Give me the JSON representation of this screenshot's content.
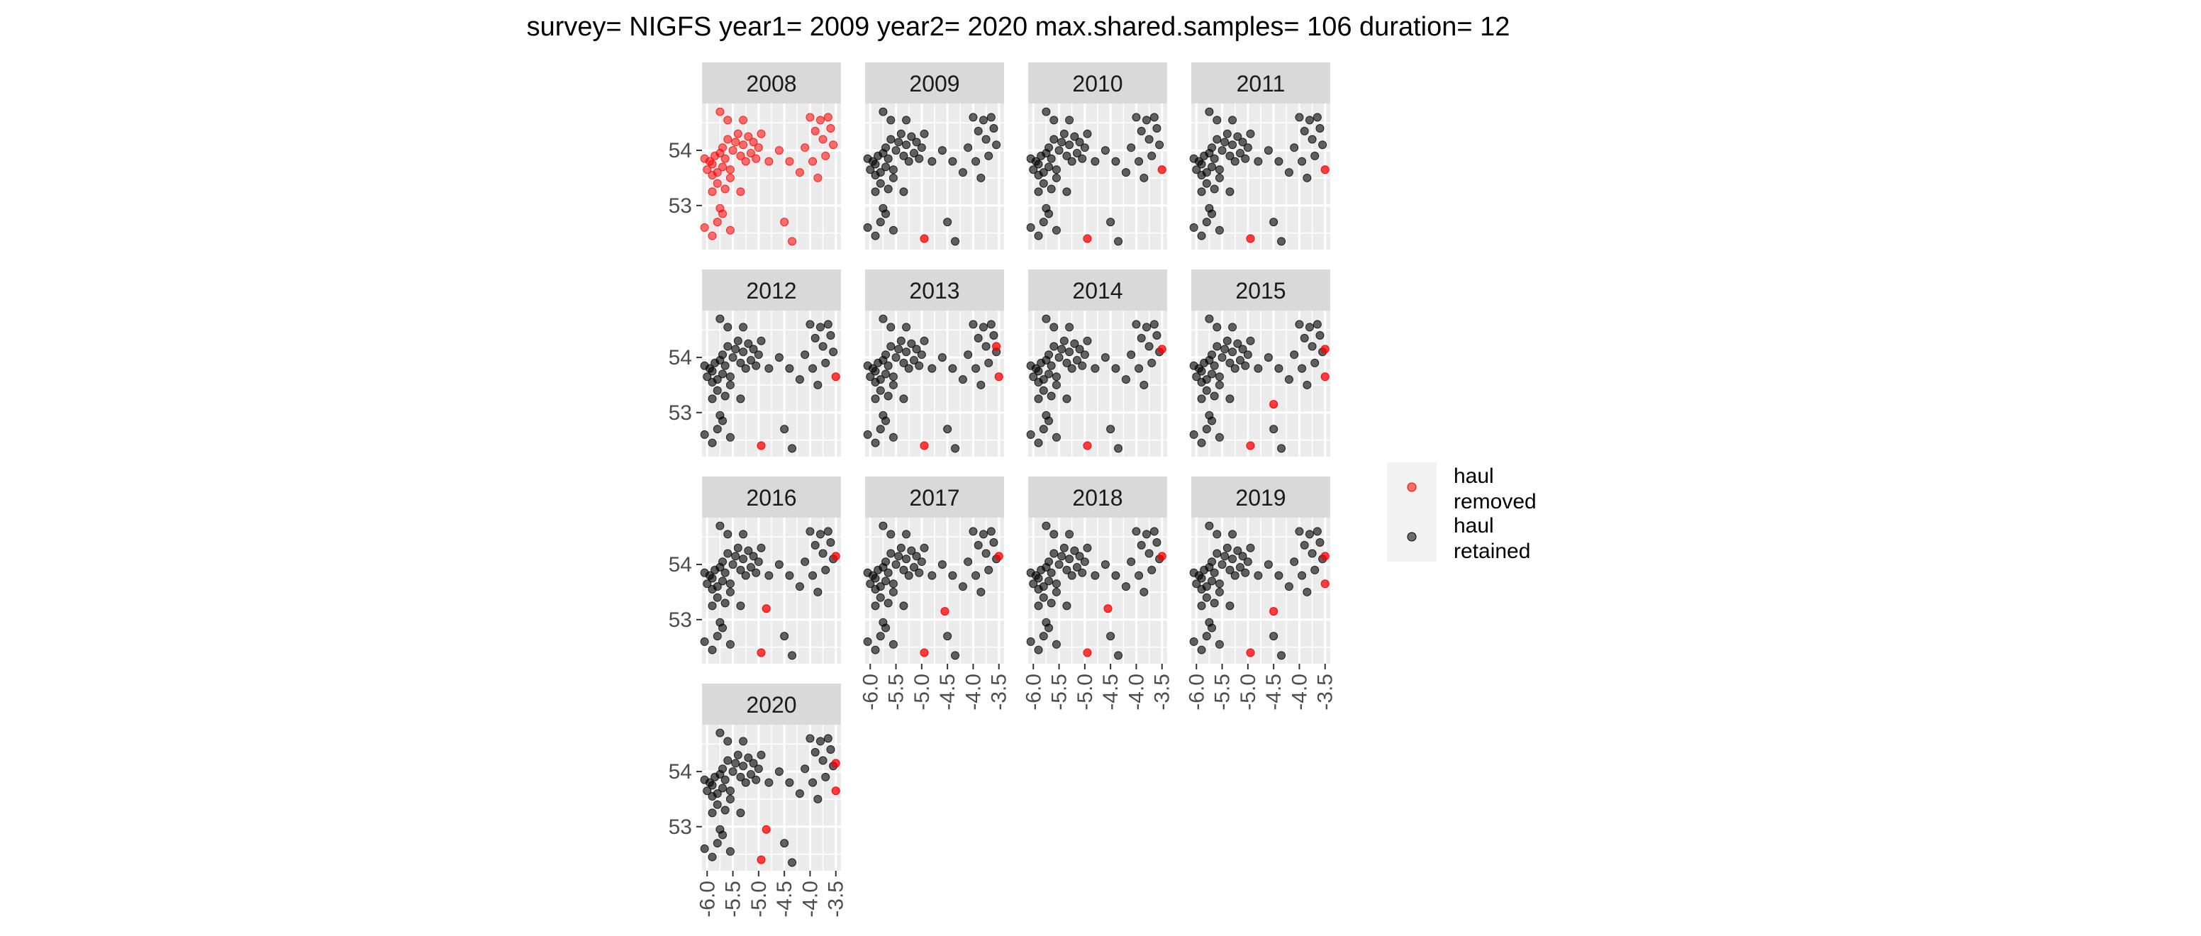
{
  "title": "survey= NIGFS year1= 2009 year2= 2020 max.shared.samples= 106 duration= 12",
  "colors": {
    "removed": "#ff0000",
    "retained": "#000000",
    "panel_background": "#ebebeb",
    "grid": "#ffffff",
    "strip_background": "#d9d9d9"
  },
  "chart_data": {
    "type": "scatter",
    "facet_by": "year",
    "x_ticks": [
      "-6.0",
      "-5.5",
      "-5.0",
      "-4.5",
      "-4.0",
      "-3.5"
    ],
    "y_ticks": [
      "53",
      "54"
    ],
    "xlim": [
      -6.1,
      -3.4
    ],
    "ylim": [
      52.2,
      54.85
    ],
    "grid": true,
    "legend_position": "right",
    "legend": [
      {
        "key": "removed",
        "label_lines": [
          "haul",
          "removed"
        ]
      },
      {
        "key": "retained",
        "label_lines": [
          "haul",
          "retained"
        ]
      }
    ],
    "base_hauls": [
      [
        -6.05,
        53.85
      ],
      [
        -6.0,
        53.65
      ],
      [
        -5.95,
        53.8
      ],
      [
        -5.9,
        53.55
      ],
      [
        -5.9,
        53.75
      ],
      [
        -5.85,
        53.9
      ],
      [
        -5.8,
        53.6
      ],
      [
        -5.8,
        53.4
      ],
      [
        -5.75,
        53.95
      ],
      [
        -5.7,
        53.7
      ],
      [
        -5.7,
        54.05
      ],
      [
        -5.65,
        53.85
      ],
      [
        -5.6,
        54.2
      ],
      [
        -5.55,
        53.65
      ],
      [
        -5.55,
        53.5
      ],
      [
        -5.5,
        54.0
      ],
      [
        -5.45,
        54.15
      ],
      [
        -5.4,
        54.3
      ],
      [
        -5.35,
        53.9
      ],
      [
        -5.3,
        54.1
      ],
      [
        -5.25,
        53.8
      ],
      [
        -5.2,
        54.25
      ],
      [
        -5.15,
        53.95
      ],
      [
        -5.1,
        54.15
      ],
      [
        -5.05,
        53.85
      ],
      [
        -5.0,
        54.05
      ],
      [
        -4.95,
        54.3
      ],
      [
        -4.8,
        53.8
      ],
      [
        -4.6,
        54.0
      ],
      [
        -4.4,
        53.8
      ],
      [
        -4.2,
        53.6
      ],
      [
        -4.1,
        54.05
      ],
      [
        -4.0,
        54.6
      ],
      [
        -3.95,
        53.8
      ],
      [
        -3.9,
        54.35
      ],
      [
        -3.85,
        53.5
      ],
      [
        -3.8,
        54.55
      ],
      [
        -3.75,
        54.2
      ],
      [
        -3.7,
        53.9
      ],
      [
        -3.65,
        54.6
      ],
      [
        -3.6,
        54.4
      ],
      [
        -3.55,
        54.1
      ],
      [
        -5.75,
        54.7
      ],
      [
        -5.6,
        54.55
      ],
      [
        -5.3,
        54.55
      ],
      [
        -5.9,
        53.25
      ],
      [
        -5.75,
        52.95
      ],
      [
        -5.65,
        53.3
      ],
      [
        -6.05,
        52.6
      ],
      [
        -5.9,
        52.45
      ],
      [
        -5.8,
        52.7
      ],
      [
        -5.7,
        52.85
      ],
      [
        -5.55,
        52.55
      ],
      [
        -5.35,
        53.25
      ],
      [
        -4.5,
        52.7
      ],
      [
        -4.35,
        52.35
      ]
    ],
    "panels": [
      {
        "year": "2008",
        "all_removed": true,
        "removed": []
      },
      {
        "year": "2009",
        "all_removed": false,
        "removed": [
          [
            -4.95,
            52.4
          ]
        ]
      },
      {
        "year": "2010",
        "all_removed": false,
        "removed": [
          [
            -4.95,
            52.4
          ],
          [
            -3.5,
            53.65
          ]
        ]
      },
      {
        "year": "2011",
        "all_removed": false,
        "removed": [
          [
            -4.95,
            52.4
          ],
          [
            -3.5,
            53.65
          ]
        ]
      },
      {
        "year": "2012",
        "all_removed": false,
        "removed": [
          [
            -4.95,
            52.4
          ],
          [
            -3.5,
            53.65
          ]
        ]
      },
      {
        "year": "2013",
        "all_removed": false,
        "removed": [
          [
            -4.95,
            52.4
          ],
          [
            -3.5,
            53.65
          ],
          [
            -3.55,
            54.2
          ]
        ]
      },
      {
        "year": "2014",
        "all_removed": false,
        "removed": [
          [
            -4.95,
            52.4
          ],
          [
            -3.5,
            54.15
          ]
        ]
      },
      {
        "year": "2015",
        "all_removed": false,
        "removed": [
          [
            -4.95,
            52.4
          ],
          [
            -3.5,
            54.15
          ],
          [
            -3.5,
            53.65
          ],
          [
            -4.5,
            53.15
          ]
        ]
      },
      {
        "year": "2016",
        "all_removed": false,
        "removed": [
          [
            -4.95,
            52.4
          ],
          [
            -3.5,
            54.15
          ],
          [
            -4.85,
            53.2
          ]
        ]
      },
      {
        "year": "2017",
        "all_removed": false,
        "removed": [
          [
            -4.95,
            52.4
          ],
          [
            -3.5,
            54.15
          ],
          [
            -4.55,
            53.15
          ]
        ]
      },
      {
        "year": "2018",
        "all_removed": false,
        "removed": [
          [
            -4.95,
            52.4
          ],
          [
            -3.5,
            54.15
          ],
          [
            -4.55,
            53.2
          ]
        ]
      },
      {
        "year": "2019",
        "all_removed": false,
        "removed": [
          [
            -4.95,
            52.4
          ],
          [
            -3.5,
            54.15
          ],
          [
            -3.5,
            53.65
          ],
          [
            -4.5,
            53.15
          ]
        ]
      },
      {
        "year": "2020",
        "all_removed": false,
        "removed": [
          [
            -4.95,
            52.4
          ],
          [
            -3.5,
            54.15
          ],
          [
            -3.5,
            53.65
          ],
          [
            -4.85,
            52.95
          ]
        ]
      }
    ]
  }
}
